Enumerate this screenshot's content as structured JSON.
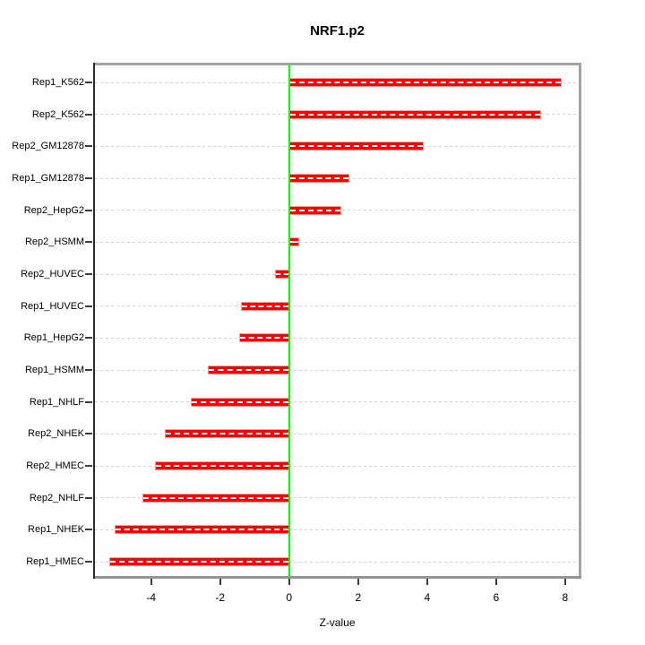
{
  "chart_data": {
    "type": "bar",
    "orientation": "horizontal",
    "title": "NRF1.p2",
    "xlabel": "Z-value",
    "ylabel": "",
    "categories": [
      "Rep1_K562",
      "Rep2_K562",
      "Rep2_GM12878",
      "Rep1_GM12878",
      "Rep2_HepG2",
      "Rep2_HSMM",
      "Rep2_HUVEC",
      "Rep1_HUVEC",
      "Rep1_HepG2",
      "Rep1_HSMM",
      "Rep1_NHLF",
      "Rep2_NHEK",
      "Rep2_HMEC",
      "Rep2_NHLF",
      "Rep1_NHEK",
      "Rep1_HMEC"
    ],
    "values": [
      7.9,
      7.3,
      3.9,
      1.75,
      1.5,
      0.3,
      -0.4,
      -1.4,
      -1.45,
      -2.35,
      -2.85,
      -3.6,
      -3.9,
      -4.25,
      -5.05,
      -5.2
    ],
    "xticks": [
      -4,
      -2,
      0,
      2,
      4,
      6,
      8
    ],
    "xtick_labels": [
      "-4",
      "-2",
      "0",
      "2",
      "4",
      "6",
      "8"
    ],
    "xlim": [
      -5.68,
      8.47
    ],
    "grid": true,
    "legend": null,
    "colors": {
      "bar_fill": "#ff0000",
      "bar_edge": "#ff9a9a",
      "bar_center_dash": "#ffffff",
      "zero_line": "#00ff00",
      "grid_line": "#d4d4d4",
      "frame": "#a3a3a3",
      "axis": "#2b2b2b",
      "text": "#000000",
      "background": "#ffffff"
    }
  }
}
